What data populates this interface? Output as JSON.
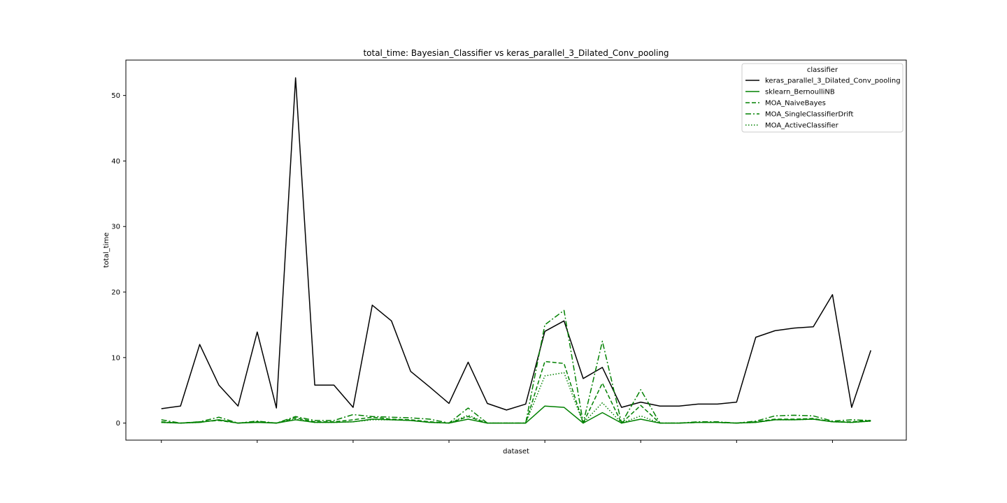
{
  "chart_data": {
    "type": "line",
    "title": "total_time: Bayesian_Classifier vs keras_parallel_3_Dilated_Conv_pooling",
    "xlabel": "dataset",
    "ylabel": "total_time",
    "xlim": [
      -1.85,
      38.85
    ],
    "ylim": [
      -2.6,
      55.4
    ],
    "yticks": [
      0,
      10,
      20,
      30,
      40,
      50
    ],
    "xticks": [
      0,
      5,
      10,
      15,
      20,
      25,
      30,
      35
    ],
    "grid": false,
    "legend": {
      "title": "classifier",
      "position": "upper right"
    },
    "x": [
      0,
      1,
      2,
      3,
      4,
      5,
      6,
      7,
      8,
      9,
      10,
      11,
      12,
      13,
      14,
      15,
      16,
      17,
      18,
      19,
      20,
      21,
      22,
      23,
      24,
      25,
      26,
      27,
      28,
      29,
      30,
      31,
      32,
      33,
      34,
      35,
      36,
      37
    ],
    "series": [
      {
        "name": "keras_parallel_3_Dilated_Conv_pooling",
        "color": "#000000",
        "dash": "solid",
        "values": [
          2.2,
          2.6,
          12.0,
          5.8,
          2.6,
          13.9,
          2.3,
          52.7,
          5.8,
          5.8,
          2.4,
          18.0,
          15.6,
          7.9,
          5.5,
          3.0,
          9.3,
          3.0,
          2.0,
          2.9,
          14.0,
          15.6,
          6.8,
          8.5,
          2.4,
          3.2,
          2.6,
          2.6,
          2.9,
          2.9,
          3.2,
          13.1,
          14.1,
          14.5,
          14.7,
          19.6,
          2.4,
          11.1
        ]
      },
      {
        "name": "sklearn_BernoulliNB",
        "color": "#008000",
        "dash": "solid",
        "values": [
          0.1,
          0.0,
          0.1,
          0.5,
          0.0,
          0.1,
          0.0,
          0.5,
          0.1,
          0.1,
          0.2,
          0.6,
          0.5,
          0.4,
          0.1,
          0.0,
          0.6,
          0.0,
          0.0,
          0.0,
          2.6,
          2.4,
          0.0,
          1.6,
          0.0,
          0.6,
          0.0,
          0.0,
          0.1,
          0.1,
          0.0,
          0.1,
          0.5,
          0.5,
          0.6,
          0.2,
          0.1,
          0.3
        ]
      },
      {
        "name": "MOA_NaiveBayes",
        "color": "#008000",
        "dash": "dashed",
        "values": [
          0.2,
          0.0,
          0.2,
          0.4,
          0.0,
          0.2,
          0.0,
          0.8,
          0.2,
          0.2,
          0.5,
          0.9,
          0.6,
          0.5,
          0.2,
          0.0,
          1.0,
          0.0,
          0.0,
          0.0,
          9.4,
          9.1,
          0.0,
          6.1,
          0.0,
          2.7,
          0.0,
          0.0,
          0.1,
          0.1,
          0.0,
          0.2,
          0.6,
          0.6,
          0.7,
          0.2,
          0.2,
          0.4
        ]
      },
      {
        "name": "MOA_SingleClassifierDrift",
        "color": "#008000",
        "dash": "dashdot",
        "values": [
          0.5,
          0.0,
          0.2,
          0.9,
          0.0,
          0.3,
          0.0,
          1.0,
          0.4,
          0.4,
          1.3,
          1.0,
          0.9,
          0.8,
          0.6,
          0.0,
          2.3,
          0.0,
          0.0,
          0.0,
          15.0,
          17.2,
          0.0,
          12.5,
          0.0,
          5.1,
          0.0,
          0.0,
          0.2,
          0.2,
          0.0,
          0.3,
          1.1,
          1.2,
          1.1,
          0.3,
          0.5,
          0.4
        ]
      },
      {
        "name": "MOA_ActiveClassifier",
        "color": "#008000",
        "dash": "dotted",
        "values": [
          0.1,
          0.0,
          0.1,
          0.5,
          0.0,
          0.2,
          0.0,
          0.6,
          0.1,
          0.1,
          0.2,
          0.5,
          0.5,
          0.4,
          0.1,
          0.0,
          1.2,
          0.0,
          0.0,
          0.0,
          7.2,
          7.7,
          0.0,
          3.1,
          0.0,
          1.1,
          0.0,
          0.0,
          0.1,
          0.1,
          0.0,
          0.1,
          0.5,
          0.5,
          0.6,
          0.2,
          0.1,
          0.3
        ]
      }
    ]
  }
}
